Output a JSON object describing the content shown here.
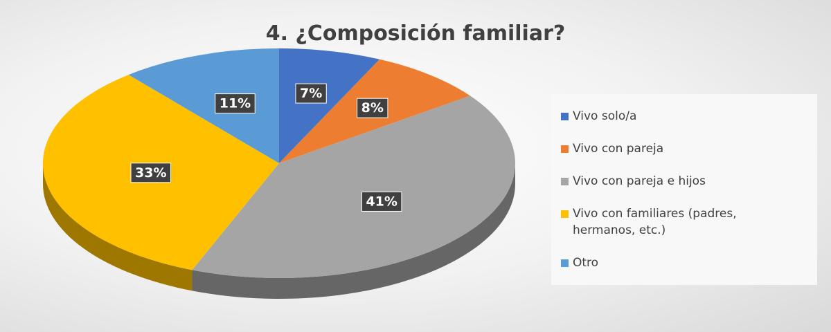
{
  "chart_data": {
    "type": "pie",
    "title": "4. ¿Composición  familiar?",
    "categories": [
      "Vivo solo/a",
      "Vivo con pareja",
      "Vivo con pareja e hijos",
      "Vivo con familiares (padres, hermanos, etc.)",
      "Otro"
    ],
    "values": [
      7,
      8,
      41,
      33,
      11
    ],
    "value_labels": [
      "7%",
      "8%",
      "41%",
      "33%",
      "11%"
    ],
    "colors": [
      "#4472c4",
      "#ed7d31",
      "#a5a5a5",
      "#ffc000",
      "#5b9bd5"
    ],
    "legend": "right"
  }
}
